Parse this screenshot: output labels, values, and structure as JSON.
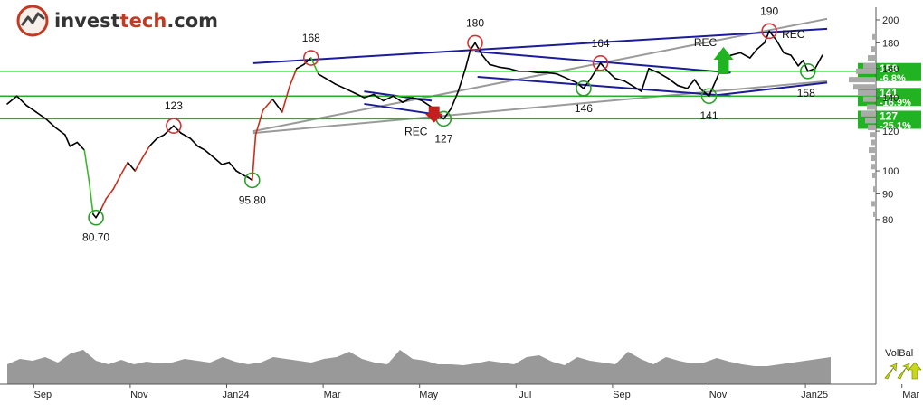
{
  "logo": {
    "brand_a": "invest",
    "brand_b": "tech",
    "brand_c": ".com"
  },
  "colors": {
    "price_line": "#000000",
    "up_segment": "#3cb82d",
    "down_segment": "#c8301e",
    "support_resistance": "#22b322",
    "trend_channel": "#1c1c9a",
    "long_trend": "#9a9a9a",
    "volume": "#999999",
    "high_marker": "#d03535",
    "low_marker": "#2aa02a"
  },
  "chart_data": {
    "type": "line",
    "x_axis": {
      "tick_labels": [
        "Sep",
        "Nov",
        "Jan24",
        "Mar",
        "May",
        "Jul",
        "Sep",
        "Nov",
        "Jan25",
        "Mar"
      ]
    },
    "y_axis": {
      "scale": "log",
      "tick_values": [
        80,
        90,
        100,
        120,
        140,
        160,
        180,
        200
      ],
      "ylim": [
        78,
        210
      ]
    },
    "series": [
      {
        "values": [
          {
            "m": 0,
            "y": 136
          },
          {
            "m": 0.2,
            "y": 141
          },
          {
            "m": 0.4,
            "y": 135
          },
          {
            "m": 0.6,
            "y": 131
          },
          {
            "m": 0.8,
            "y": 127
          },
          {
            "m": 1.0,
            "y": 122
          },
          {
            "m": 1.2,
            "y": 118
          },
          {
            "m": 1.3,
            "y": 112
          },
          {
            "m": 1.45,
            "y": 114
          },
          {
            "m": 1.6,
            "y": 110
          },
          {
            "m": 1.7,
            "y": 95
          },
          {
            "m": 1.78,
            "y": 82
          },
          {
            "m": 1.84,
            "y": 80.7
          },
          {
            "m": 1.95,
            "y": 84
          },
          {
            "m": 2.05,
            "y": 88
          },
          {
            "m": 2.2,
            "y": 92
          },
          {
            "m": 2.35,
            "y": 98
          },
          {
            "m": 2.5,
            "y": 104
          },
          {
            "m": 2.65,
            "y": 100
          },
          {
            "m": 2.8,
            "y": 106
          },
          {
            "m": 2.95,
            "y": 112
          },
          {
            "m": 3.1,
            "y": 116
          },
          {
            "m": 3.25,
            "y": 118
          },
          {
            "m": 3.45,
            "y": 123
          },
          {
            "m": 3.6,
            "y": 119
          },
          {
            "m": 3.8,
            "y": 116
          },
          {
            "m": 3.95,
            "y": 112
          },
          {
            "m": 4.1,
            "y": 110
          },
          {
            "m": 4.3,
            "y": 106
          },
          {
            "m": 4.45,
            "y": 103
          },
          {
            "m": 4.6,
            "y": 104
          },
          {
            "m": 4.75,
            "y": 100
          },
          {
            "m": 4.9,
            "y": 98
          },
          {
            "m": 5.0,
            "y": 97
          },
          {
            "m": 5.08,
            "y": 95.8
          },
          {
            "m": 5.15,
            "y": 118
          },
          {
            "m": 5.3,
            "y": 132
          },
          {
            "m": 5.5,
            "y": 139
          },
          {
            "m": 5.7,
            "y": 131
          },
          {
            "m": 5.85,
            "y": 147
          },
          {
            "m": 6.0,
            "y": 160
          },
          {
            "m": 6.15,
            "y": 163
          },
          {
            "m": 6.3,
            "y": 168
          },
          {
            "m": 6.45,
            "y": 156
          },
          {
            "m": 6.6,
            "y": 153
          },
          {
            "m": 6.8,
            "y": 149
          },
          {
            "m": 7.0,
            "y": 146
          },
          {
            "m": 7.2,
            "y": 143
          },
          {
            "m": 7.4,
            "y": 140
          },
          {
            "m": 7.6,
            "y": 142
          },
          {
            "m": 7.8,
            "y": 138
          },
          {
            "m": 8.0,
            "y": 141
          },
          {
            "m": 8.2,
            "y": 137
          },
          {
            "m": 8.4,
            "y": 140
          },
          {
            "m": 8.6,
            "y": 138
          },
          {
            "m": 8.8,
            "y": 134
          },
          {
            "m": 8.95,
            "y": 129
          },
          {
            "m": 9.05,
            "y": 127
          },
          {
            "m": 9.2,
            "y": 133
          },
          {
            "m": 9.35,
            "y": 144
          },
          {
            "m": 9.5,
            "y": 160
          },
          {
            "m": 9.6,
            "y": 174
          },
          {
            "m": 9.7,
            "y": 180
          },
          {
            "m": 9.85,
            "y": 170
          },
          {
            "m": 10.0,
            "y": 163
          },
          {
            "m": 10.2,
            "y": 161
          },
          {
            "m": 10.4,
            "y": 160
          },
          {
            "m": 10.6,
            "y": 158
          },
          {
            "m": 10.8,
            "y": 158
          },
          {
            "m": 11.0,
            "y": 157
          },
          {
            "m": 11.2,
            "y": 157
          },
          {
            "m": 11.4,
            "y": 156
          },
          {
            "m": 11.6,
            "y": 153
          },
          {
            "m": 11.8,
            "y": 150
          },
          {
            "m": 11.95,
            "y": 146
          },
          {
            "m": 12.1,
            "y": 153
          },
          {
            "m": 12.3,
            "y": 164
          },
          {
            "m": 12.45,
            "y": 158
          },
          {
            "m": 12.6,
            "y": 153
          },
          {
            "m": 12.8,
            "y": 151
          },
          {
            "m": 13.0,
            "y": 147
          },
          {
            "m": 13.15,
            "y": 144
          },
          {
            "m": 13.3,
            "y": 160
          },
          {
            "m": 13.5,
            "y": 157
          },
          {
            "m": 13.7,
            "y": 153
          },
          {
            "m": 13.9,
            "y": 148
          },
          {
            "m": 14.1,
            "y": 146
          },
          {
            "m": 14.25,
            "y": 152
          },
          {
            "m": 14.4,
            "y": 145
          },
          {
            "m": 14.55,
            "y": 141
          },
          {
            "m": 14.7,
            "y": 152
          },
          {
            "m": 14.85,
            "y": 165
          },
          {
            "m": 15.0,
            "y": 170
          },
          {
            "m": 15.2,
            "y": 172
          },
          {
            "m": 15.4,
            "y": 168
          },
          {
            "m": 15.55,
            "y": 175
          },
          {
            "m": 15.7,
            "y": 180
          },
          {
            "m": 15.8,
            "y": 190
          },
          {
            "m": 15.95,
            "y": 182
          },
          {
            "m": 16.1,
            "y": 172
          },
          {
            "m": 16.25,
            "y": 170
          },
          {
            "m": 16.4,
            "y": 162
          },
          {
            "m": 16.5,
            "y": 166
          },
          {
            "m": 16.6,
            "y": 158
          },
          {
            "m": 16.75,
            "y": 160
          },
          {
            "m": 16.9,
            "y": 170
          }
        ]
      }
    ],
    "horizontal_levels": [
      {
        "value": 158,
        "label": "158",
        "change": "-6.8%"
      },
      {
        "value": 141,
        "label": "141",
        "change": "-16.9%"
      },
      {
        "value": 127,
        "label": "127",
        "change": "-25.1%"
      }
    ],
    "trend_lines": [
      {
        "kind": "long_trend",
        "from": {
          "m": 5.1,
          "y": 120
        },
        "to": {
          "m": 17.0,
          "y": 201
        }
      },
      {
        "kind": "long_trend",
        "from": {
          "m": 5.1,
          "y": 119
        },
        "to": {
          "m": 17.0,
          "y": 151
        }
      },
      {
        "kind": "channel",
        "from": {
          "m": 5.1,
          "y": 164
        },
        "to": {
          "m": 17.0,
          "y": 192
        }
      },
      {
        "kind": "channel",
        "from": {
          "m": 7.4,
          "y": 144
        },
        "to": {
          "m": 8.8,
          "y": 138
        }
      },
      {
        "kind": "channel",
        "from": {
          "m": 7.4,
          "y": 136
        },
        "to": {
          "m": 8.8,
          "y": 130
        }
      },
      {
        "kind": "channel",
        "from": {
          "m": 9.7,
          "y": 173
        },
        "to": {
          "m": 15.0,
          "y": 157
        }
      },
      {
        "kind": "channel",
        "from": {
          "m": 9.75,
          "y": 154
        },
        "to": {
          "m": 15.0,
          "y": 141
        }
      },
      {
        "kind": "channel",
        "from": {
          "m": 14.55,
          "y": 141
        },
        "to": {
          "m": 17.0,
          "y": 150
        }
      }
    ],
    "annotations": [
      {
        "text": "80.70",
        "m": 1.84,
        "y": 80.7,
        "marker": "low",
        "label_side": "below"
      },
      {
        "text": "123",
        "m": 3.45,
        "y": 123,
        "marker": "high",
        "label_side": "above"
      },
      {
        "text": "95.80",
        "m": 5.08,
        "y": 95.8,
        "marker": "low",
        "label_side": "below"
      },
      {
        "text": "168",
        "m": 6.3,
        "y": 168,
        "marker": "high",
        "label_side": "above"
      },
      {
        "text": "127",
        "m": 9.05,
        "y": 127,
        "marker": "low",
        "label_side": "below"
      },
      {
        "text": "180",
        "m": 9.7,
        "y": 180,
        "marker": "high",
        "label_side": "above"
      },
      {
        "text": "146",
        "m": 11.95,
        "y": 146,
        "marker": "low",
        "label_side": "below"
      },
      {
        "text": "164",
        "m": 12.3,
        "y": 164,
        "marker": "high",
        "label_side": "above"
      },
      {
        "text": "141",
        "m": 14.55,
        "y": 141,
        "marker": "low",
        "label_side": "below"
      },
      {
        "text": "190",
        "m": 15.8,
        "y": 190,
        "marker": "high",
        "label_side": "above"
      },
      {
        "text": "158",
        "m": 16.6,
        "y": 158,
        "marker": "low",
        "label_side": "below_right"
      }
    ],
    "signals": [
      {
        "text": "REC",
        "m": 8.85,
        "y": 129,
        "arrow": "down"
      },
      {
        "text": "REC",
        "m": 14.85,
        "y": 168,
        "arrow": "up"
      },
      {
        "text": "REC",
        "m": 16.3,
        "y": 187,
        "arrow": "none"
      }
    ],
    "volume": {
      "label": "VolBal",
      "values": [
        22,
        28,
        26,
        30,
        24,
        34,
        38,
        26,
        22,
        27,
        22,
        25,
        23,
        24,
        28,
        26,
        24,
        30,
        25,
        22,
        24,
        30,
        28,
        26,
        24,
        28,
        30,
        36,
        28,
        24,
        22,
        38,
        28,
        26,
        22,
        22,
        21,
        23,
        26,
        24,
        22,
        30,
        32,
        25,
        21,
        30,
        26,
        24,
        22,
        36,
        28,
        22,
        30,
        26,
        23,
        24,
        29,
        25,
        22,
        20,
        20,
        22,
        24,
        26,
        28,
        30
      ]
    }
  }
}
